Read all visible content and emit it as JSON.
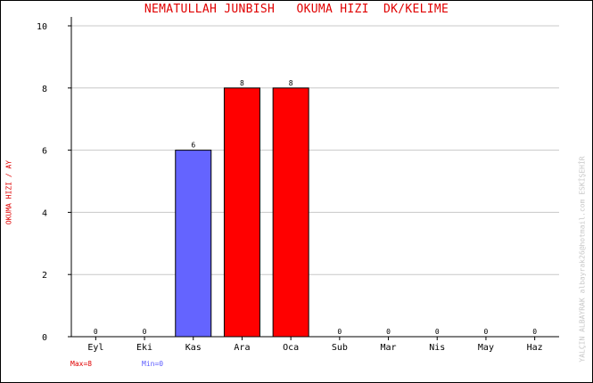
{
  "chart_data": {
    "type": "bar",
    "title": "NEMATULLAH JUNBISH   OKUMA HIZI  DK/KELIME",
    "ylabel": "OKUMA HIZI / AY",
    "categories": [
      "Eyl",
      "Eki",
      "Kas",
      "Ara",
      "Oca",
      "Sub",
      "Mar",
      "Nis",
      "May",
      "Haz"
    ],
    "values": [
      0,
      0,
      6,
      8,
      8,
      0,
      0,
      0,
      0,
      0
    ],
    "bar_colors": [
      "#ff0000",
      "#ff0000",
      "#6464ff",
      "#ff0000",
      "#ff0000",
      "#ff0000",
      "#ff0000",
      "#ff0000",
      "#ff0000",
      "#ff0000"
    ],
    "ylim": [
      0,
      10
    ],
    "yticks": [
      0,
      2,
      4,
      6,
      8,
      10
    ],
    "grid": true,
    "legend": "none"
  },
  "stats": {
    "max_text": "Max=8",
    "min_text": "Min=0"
  },
  "watermark": "YALÇIN ALBAYRAK  albayrak26@hotmail.com  ESKİŞEHİR",
  "colors": {
    "max": "#ff0000",
    "min": "#6464ff",
    "title": "#e00000",
    "grid": "#c8c8c8"
  }
}
